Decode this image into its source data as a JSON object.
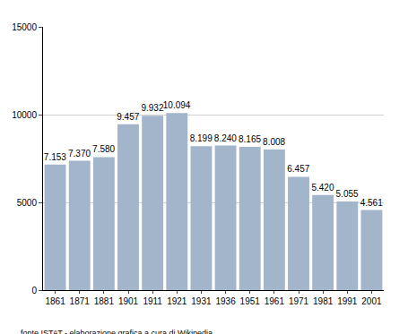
{
  "chart_data": {
    "type": "bar",
    "categories": [
      "1861",
      "1871",
      "1881",
      "1901",
      "1911",
      "1921",
      "1931",
      "1936",
      "1951",
      "1961",
      "1971",
      "1981",
      "1991",
      "2001"
    ],
    "values": [
      7153,
      7370,
      7580,
      9457,
      9932,
      10094,
      8199,
      8240,
      8165,
      8008,
      6457,
      5420,
      5055,
      4561
    ],
    "value_labels": [
      "7.153",
      "7.370",
      "7.580",
      "9.457",
      "9.932",
      "10.094",
      "8.199",
      "8.240",
      "8.165",
      "8.008",
      "6.457",
      "5.420",
      "5.055",
      "4.561"
    ],
    "data_labels": true,
    "color": "#a2b5cb",
    "ylim": [
      0,
      15000
    ],
    "yticks": [
      0,
      5000,
      10000,
      15000
    ],
    "grid": true,
    "annotations": [
      "fonte ISTAT - elaborazione grafica a cura di Wikipedia"
    ]
  }
}
